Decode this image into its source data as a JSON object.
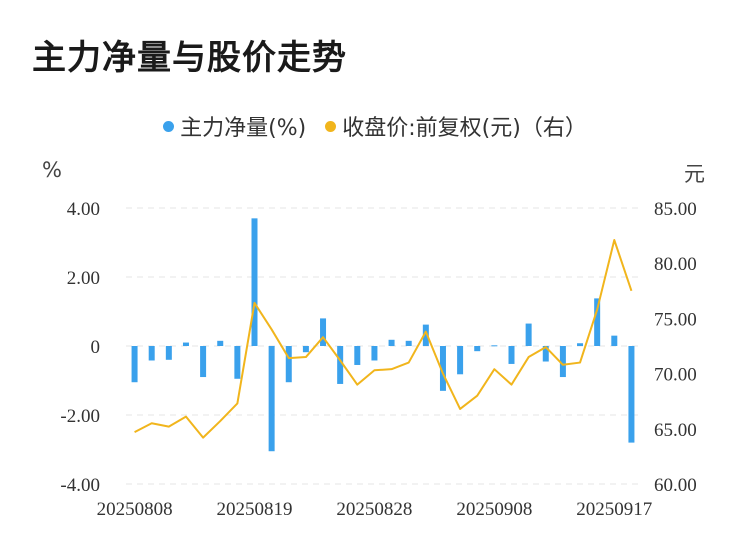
{
  "title": "主力净量与股价走势",
  "legend": {
    "bar_label": "主力净量(%)",
    "line_label": "收盘价:前复权(元)（右）"
  },
  "units": {
    "left": "%",
    "right": "元"
  },
  "colors": {
    "bar": "#3aa1ec",
    "line": "#f1b51c",
    "grid": "#e6e6e6"
  },
  "chart_data": {
    "type": "bar+line",
    "x_tick_labels": [
      "20250808",
      "20250819",
      "20250828",
      "20250908",
      "20250917"
    ],
    "y_left": {
      "min": -4,
      "max": 4,
      "ticks": [
        "-4.00",
        "-2.00",
        "0",
        "2.00",
        "4.00"
      ]
    },
    "y_right": {
      "min": 60,
      "max": 85,
      "ticks": [
        "60.00",
        "65.00",
        "70.00",
        "75.00",
        "80.00",
        "85.00"
      ]
    },
    "series": [
      {
        "name": "主力净量(%)",
        "type": "bar",
        "values": [
          -1.05,
          -0.42,
          -0.4,
          0.1,
          -0.9,
          0.15,
          -0.95,
          3.7,
          -3.05,
          -1.05,
          -0.18,
          0.8,
          -1.1,
          -0.55,
          -0.42,
          0.18,
          0.15,
          0.62,
          -1.3,
          -0.82,
          -0.15,
          0.02,
          -0.52,
          0.65,
          -0.45,
          -0.9,
          0.08,
          1.38,
          0.3,
          -2.8
        ]
      },
      {
        "name": "收盘价:前复权(元)（右）",
        "type": "line",
        "values": [
          64.7,
          65.5,
          65.2,
          66.1,
          64.2,
          65.7,
          67.3,
          76.4,
          74.0,
          71.4,
          71.5,
          73.3,
          71.2,
          69.0,
          70.3,
          70.4,
          71.0,
          73.8,
          70.0,
          66.8,
          68.0,
          70.4,
          69.0,
          71.5,
          72.4,
          70.8,
          71.0,
          75.8,
          82.1,
          77.5
        ]
      }
    ]
  }
}
